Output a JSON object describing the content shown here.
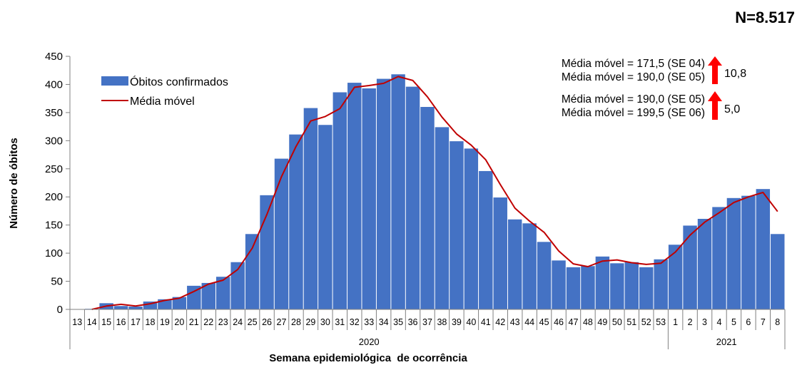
{
  "n_label": "N=8.517",
  "chart_data": {
    "type": "bar",
    "title": "",
    "xlabel": "Semana epidemiológica  de ocorrência",
    "ylabel": "Número de óbitos",
    "ylim": [
      0,
      450
    ],
    "yticks": [
      0,
      50,
      100,
      150,
      200,
      250,
      300,
      350,
      400,
      450
    ],
    "grid": false,
    "legend_position": "top-left",
    "categories": [
      "13",
      "14",
      "15",
      "16",
      "17",
      "18",
      "19",
      "20",
      "21",
      "22",
      "23",
      "24",
      "25",
      "26",
      "27",
      "28",
      "29",
      "30",
      "31",
      "32",
      "33",
      "34",
      "35",
      "36",
      "37",
      "38",
      "39",
      "40",
      "41",
      "42",
      "43",
      "44",
      "45",
      "46",
      "47",
      "48",
      "49",
      "50",
      "51",
      "52",
      "53",
      "1",
      "2",
      "3",
      "4",
      "5",
      "6",
      "7",
      "8"
    ],
    "year_groups": [
      {
        "label": "2020",
        "start": 0,
        "end": 40
      },
      {
        "label": "2021",
        "start": 41,
        "end": 48
      }
    ],
    "series": [
      {
        "name": "Óbitos confirmados",
        "kind": "bar",
        "color": "#4472C4",
        "values": [
          0,
          1,
          11,
          6,
          5,
          14,
          18,
          22,
          42,
          47,
          58,
          84,
          134,
          203,
          268,
          311,
          358,
          328,
          386,
          403,
          393,
          410,
          418,
          396,
          360,
          324,
          299,
          286,
          246,
          199,
          160,
          153,
          120,
          87,
          75,
          77,
          94,
          82,
          84,
          75,
          89,
          115,
          149,
          161,
          182,
          198,
          202,
          214,
          134
        ]
      },
      {
        "name": "Média móvel",
        "kind": "line",
        "color": "#C00000",
        "values": [
          null,
          0,
          6,
          9,
          6,
          10,
          16,
          20,
          32,
          45,
          52,
          71,
          109,
          169,
          236,
          290,
          335,
          343,
          357,
          395,
          398,
          402,
          414,
          407,
          378,
          342,
          312,
          292,
          266,
          222,
          180,
          157,
          137,
          104,
          81,
          76,
          86,
          88,
          83,
          80,
          82,
          102,
          132,
          155,
          172,
          190,
          200,
          208,
          174
        ]
      }
    ],
    "annotations": [
      {
        "line1": "Média móvel = 171,5 (SE 04)",
        "line2": "Média móvel = 190,0 (SE 05)",
        "change": "10,8",
        "direction": "up",
        "arrow_color": "#FF0000"
      },
      {
        "line1": "Média móvel = 190,0 (SE 05)",
        "line2": "Média móvel = 199,5 (SE 06)",
        "change": "5,0",
        "direction": "up",
        "arrow_color": "#FF0000"
      }
    ]
  }
}
